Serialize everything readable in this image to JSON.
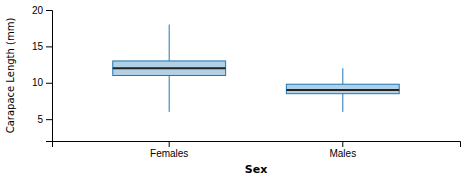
{
  "chart_data": {
    "type": "box",
    "categories": [
      "Females",
      "Males"
    ],
    "boxes": [
      {
        "whislo": 6.0,
        "q1": 11.0,
        "med": 12.0,
        "q3": 13.0,
        "whishi": 18.0
      },
      {
        "whislo": 6.0,
        "q1": 8.5,
        "med": 9.0,
        "q3": 9.8,
        "whishi": 12.0
      }
    ],
    "ylim": [
      2,
      20
    ],
    "yticks": [
      5,
      10,
      15,
      20
    ],
    "xlabel": "Sex",
    "ylabel": "Carapace Length (mm)",
    "grid": false
  }
}
